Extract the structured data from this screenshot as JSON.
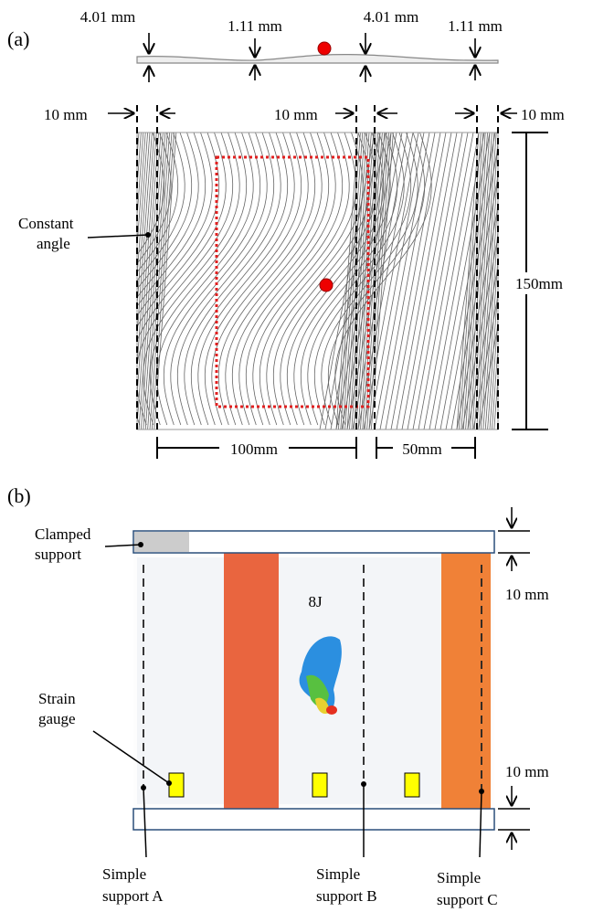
{
  "panel_a": {
    "label": "(a)",
    "thickness_labels": [
      "4.01 mm",
      "1.11 mm",
      "4.01 mm",
      "1.11 mm"
    ],
    "width_labels": [
      "10 mm",
      "10 mm",
      "10 mm"
    ],
    "constant_angle": [
      "Constant",
      "angle"
    ],
    "height_label": "150mm",
    "span_labels": [
      "100mm",
      "50mm"
    ]
  },
  "panel_b": {
    "label": "(b)",
    "clamped_support": [
      "Clamped",
      "support"
    ],
    "strain_gauge": [
      "Strain",
      "gauge"
    ],
    "impact_label": "8J",
    "edge_labels": [
      "10 mm",
      "10 mm"
    ],
    "supports": [
      [
        "Simple",
        "support A"
      ],
      [
        "Simple",
        "support B"
      ],
      [
        "Simple",
        "support C"
      ]
    ]
  }
}
